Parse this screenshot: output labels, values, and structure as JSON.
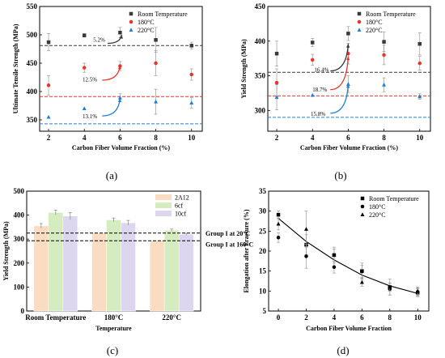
{
  "colors": {
    "room": "#3a3a3a",
    "c180": "#e8342d",
    "c220": "#1f7fd4",
    "bar_2a12": "#f9dcc2",
    "bar_6cf": "#d4ecc0",
    "bar_10cf": "#dcd6ee",
    "arrow_black": "#000000"
  },
  "chart_data": [
    {
      "panel": "(a)",
      "type": "scatter",
      "xlabel": "Carbon Fiber Volume Fraction (%)",
      "ylabel": "Ultimate Tensile Strength (MPa)",
      "xlim": [
        1.5,
        10.6
      ],
      "ylim": [
        330,
        550
      ],
      "xticks": [
        2,
        4,
        6,
        8,
        10
      ],
      "yticks": [
        350,
        400,
        450,
        500,
        550
      ],
      "legend": "top-right",
      "series": [
        {
          "name": "Room Temperature",
          "marker": "square",
          "color_key": "room",
          "x": [
            2,
            4,
            6,
            8,
            10
          ],
          "y": [
            487,
            499,
            504,
            491,
            481
          ],
          "err": [
            15,
            3,
            9,
            22,
            6
          ]
        },
        {
          "name": "180°C",
          "marker": "circle",
          "color_key": "c180",
          "x": [
            2,
            4,
            6,
            8,
            10
          ],
          "y": [
            411,
            442,
            445,
            450,
            430
          ],
          "err": [
            17,
            8,
            8,
            22,
            10
          ]
        },
        {
          "name": "220°C",
          "marker": "triangle",
          "color_key": "c220",
          "x": [
            2,
            4,
            6,
            8,
            10
          ],
          "y": [
            355,
            370,
            389,
            382,
            380
          ],
          "err": [
            0,
            0,
            7,
            22,
            9
          ]
        }
      ],
      "ref_lines": [
        {
          "y": 481,
          "color_key": "room"
        },
        {
          "y": 391,
          "color_key": "c180"
        },
        {
          "y": 343,
          "color_key": "c220"
        }
      ],
      "annotations": [
        {
          "text": "5.2%",
          "x": 4.5,
          "y": 488,
          "arrow_from": [
            5.3,
            485
          ],
          "arrow_to": [
            6.1,
            500
          ],
          "color_key": "room"
        },
        {
          "text": "12.5%",
          "x": 3.9,
          "y": 418,
          "arrow_from": [
            5.0,
            420
          ],
          "arrow_to": [
            6.0,
            446
          ],
          "color_key": "c180"
        },
        {
          "text": "13.1%",
          "x": 3.9,
          "y": 353,
          "arrow_from": [
            5.0,
            357
          ],
          "arrow_to": [
            6.0,
            388
          ],
          "color_key": "c220"
        }
      ]
    },
    {
      "panel": "(b)",
      "type": "scatter",
      "xlabel": "Carbon Fiber Volume Fraction (%)",
      "ylabel": "Yield Strength (MPa)",
      "xlim": [
        1.5,
        10.6
      ],
      "ylim": [
        270,
        450
      ],
      "xticks": [
        2,
        4,
        6,
        8,
        10
      ],
      "yticks": [
        300,
        350,
        400,
        450
      ],
      "legend": "top-right",
      "series": [
        {
          "name": "Room Temperature",
          "marker": "square",
          "color_key": "room",
          "x": [
            2,
            4,
            6,
            8,
            10
          ],
          "y": [
            382,
            398,
            411,
            399,
            396
          ],
          "err": [
            18,
            6,
            10,
            14,
            16
          ]
        },
        {
          "name": "180°C",
          "marker": "circle",
          "color_key": "c180",
          "x": [
            2,
            4,
            6,
            8,
            10
          ],
          "y": [
            340,
            373,
            382,
            380,
            368
          ],
          "err": [
            20,
            8,
            15,
            14,
            10
          ]
        },
        {
          "name": "220°C",
          "marker": "triangle",
          "color_key": "c220",
          "x": [
            2,
            4,
            6,
            8,
            10
          ],
          "y": [
            319,
            322,
            338,
            337,
            320
          ],
          "err": [
            18,
            0,
            12,
            10,
            4
          ]
        }
      ],
      "ref_lines": [
        {
          "y": 355,
          "color_key": "room"
        },
        {
          "y": 321,
          "color_key": "c180"
        },
        {
          "y": 290,
          "color_key": "c220"
        }
      ],
      "annotations": [
        {
          "text": "16.4%",
          "x": 4.1,
          "y": 356,
          "arrow_from": [
            5.0,
            357
          ],
          "arrow_to": [
            6.0,
            396
          ],
          "color_key": "room"
        },
        {
          "text": "18.7%",
          "x": 4.0,
          "y": 327,
          "arrow_from": [
            5.0,
            330
          ],
          "arrow_to": [
            6.0,
            378
          ],
          "color_key": "c180"
        },
        {
          "text": "15.8%",
          "x": 3.9,
          "y": 292,
          "arrow_from": [
            5.0,
            296
          ],
          "arrow_to": [
            6.0,
            338
          ],
          "color_key": "c220"
        }
      ]
    },
    {
      "panel": "(c)",
      "type": "bar",
      "xlabel": "Temperature",
      "ylabel": "Yield Strength (MPa)",
      "ylim": [
        0,
        500
      ],
      "yticks": [
        0,
        100,
        200,
        300,
        400,
        500
      ],
      "categories": [
        "Room Temperature",
        "180°C",
        "220°C"
      ],
      "legend": "top-right",
      "series": [
        {
          "name": "2A12",
          "color_key": "bar_2a12",
          "values": [
            355,
            325,
            293
          ],
          "err": [
            10,
            0,
            0
          ]
        },
        {
          "name": "6cf",
          "color_key": "bar_6cf",
          "values": [
            411,
            380,
            337
          ],
          "err": [
            10,
            8,
            5
          ]
        },
        {
          "name": "10cf",
          "color_key": "bar_10cf",
          "values": [
            396,
            368,
            320
          ],
          "err": [
            15,
            10,
            4
          ]
        }
      ],
      "ref_lines": [
        {
          "y": 325,
          "label": "Group I at  20°C"
        },
        {
          "y": 293,
          "label": "Group I at 160°C"
        }
      ]
    },
    {
      "panel": "(d)",
      "type": "scatter",
      "xlabel": "Carbon Fiber Volume Fraction",
      "ylabel": "Elongation after Fracture (%)",
      "xlim": [
        -0.7,
        10.8
      ],
      "ylim": [
        5,
        35
      ],
      "xticks": [
        0,
        2,
        4,
        6,
        8,
        10
      ],
      "yticks": [
        5,
        10,
        15,
        20,
        25,
        30,
        35
      ],
      "legend": "top-right",
      "series": [
        {
          "name": "Room Temperature",
          "marker": "square",
          "x": [
            0,
            2,
            4,
            6,
            8,
            10
          ],
          "y": [
            29.1,
            21.6,
            19.0,
            15.0,
            11.0,
            9.6
          ],
          "err": [
            1.0,
            2.5,
            1.5,
            2.0,
            2.0,
            1.0
          ]
        },
        {
          "name": "180°C",
          "marker": "circle",
          "x": [
            0,
            2,
            4,
            6,
            8,
            10
          ],
          "y": [
            23.4,
            18.7,
            16.0,
            14.9,
            10.5,
            9.8
          ],
          "err": [
            1.2,
            3.0,
            1.5,
            1.5,
            1.5,
            1.0
          ]
        },
        {
          "name": "220°C",
          "marker": "triangle",
          "x": [
            0,
            2,
            4,
            6,
            8,
            10
          ],
          "y": [
            26.8,
            25.5,
            19.0,
            12.2,
            11.0,
            10.0
          ],
          "err": [
            1.5,
            4.5,
            2.0,
            1.0,
            1.0,
            1.0
          ]
        }
      ],
      "fit_curve": {
        "x": [
          0,
          2,
          4,
          6,
          8,
          10
        ],
        "y": [
          28.2,
          22.4,
          17.8,
          14.0,
          11.3,
          9.4
        ]
      }
    }
  ]
}
